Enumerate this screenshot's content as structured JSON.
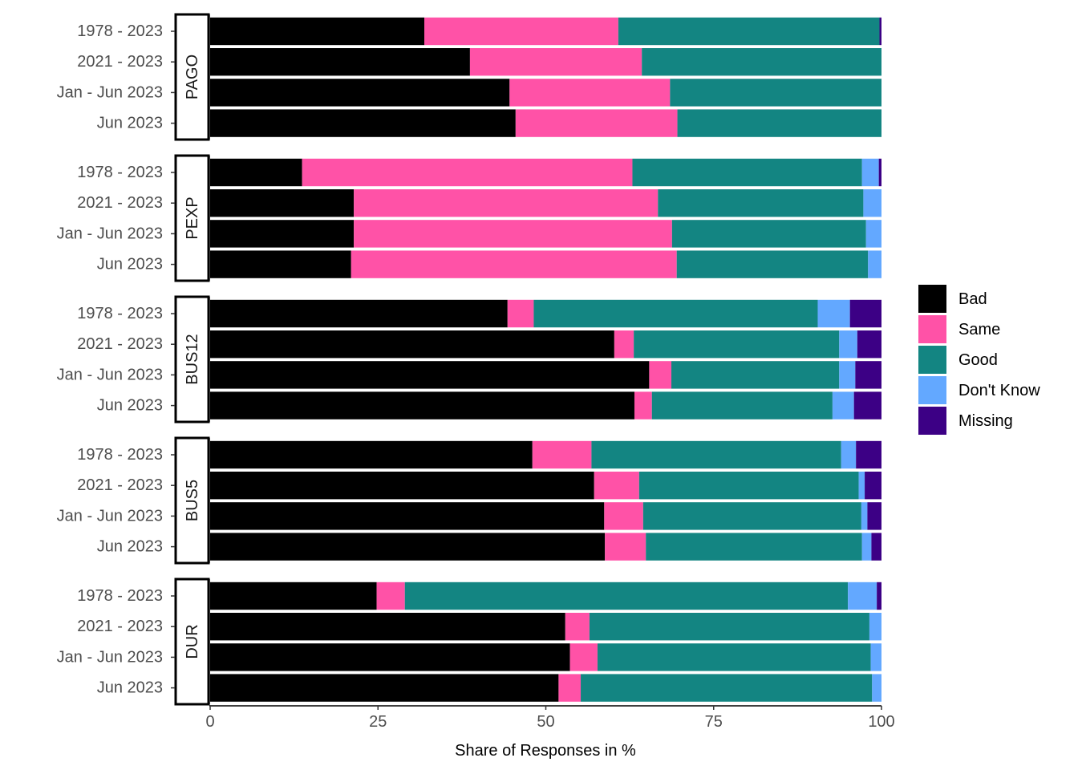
{
  "chart_data": {
    "type": "bar",
    "orientation": "horizontal",
    "stacked": true,
    "xlabel": "Share of Responses in %",
    "xlim": [
      0,
      100
    ],
    "xticks": [
      0,
      25,
      50,
      75,
      100
    ],
    "grid": false,
    "legend_position": "right",
    "categories": [
      "1978 - 2023",
      "2021 - 2023",
      "Jan - Jun 2023",
      "Jun 2023"
    ],
    "legend": [
      {
        "name": "Bad",
        "color": "#000000"
      },
      {
        "name": "Same",
        "color": "#ff52a7"
      },
      {
        "name": "Good",
        "color": "#138582"
      },
      {
        "name": "Don't Know",
        "color": "#63a8ff"
      },
      {
        "name": "Missing",
        "color": "#3c0085"
      }
    ],
    "panels": [
      {
        "label": "PAGO",
        "rows": [
          [
            31.9,
            28.9,
            38.9,
            0.0,
            0.3
          ],
          [
            38.7,
            25.6,
            35.7,
            0.0,
            0.0
          ],
          [
            44.6,
            23.9,
            31.5,
            0.0,
            0.0
          ],
          [
            45.5,
            24.1,
            30.4,
            0.0,
            0.0
          ]
        ]
      },
      {
        "label": "PEXP",
        "rows": [
          [
            13.7,
            49.2,
            34.2,
            2.5,
            0.4
          ],
          [
            21.4,
            45.3,
            30.6,
            2.7,
            0.0
          ],
          [
            21.4,
            47.4,
            28.9,
            2.3,
            0.0
          ],
          [
            21.0,
            48.5,
            28.5,
            2.0,
            0.0
          ]
        ]
      },
      {
        "label": "BUS12",
        "rows": [
          [
            44.3,
            3.9,
            42.3,
            4.8,
            4.7
          ],
          [
            60.2,
            2.9,
            30.6,
            2.7,
            3.6
          ],
          [
            65.4,
            3.3,
            25.0,
            2.4,
            3.9
          ],
          [
            63.2,
            2.6,
            26.9,
            3.2,
            4.1
          ]
        ]
      },
      {
        "label": "BUS5",
        "rows": [
          [
            48.0,
            8.8,
            37.2,
            2.2,
            3.8
          ],
          [
            57.2,
            6.7,
            32.7,
            0.9,
            2.5
          ],
          [
            58.7,
            5.8,
            32.5,
            0.9,
            2.1
          ],
          [
            58.8,
            6.1,
            32.2,
            1.4,
            1.5
          ]
        ]
      },
      {
        "label": "DUR",
        "rows": [
          [
            24.8,
            4.2,
            66.0,
            4.3,
            0.7
          ],
          [
            52.9,
            3.6,
            41.7,
            1.8,
            0.0
          ],
          [
            53.6,
            4.1,
            40.7,
            1.6,
            0.0
          ],
          [
            51.9,
            3.3,
            43.4,
            1.4,
            0.0
          ]
        ]
      }
    ]
  }
}
